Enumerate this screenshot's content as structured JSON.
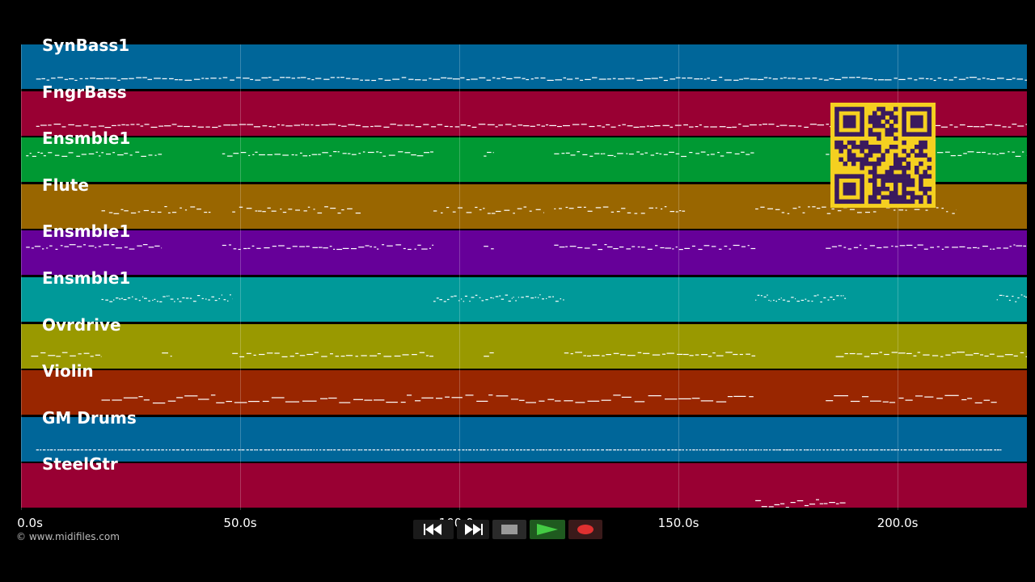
{
  "tracks": [
    {
      "label": "SynBass1",
      "color": "#006699",
      "pattern": "bass"
    },
    {
      "label": "FngrBass",
      "color": "#990033",
      "pattern": "bass"
    },
    {
      "label": "Ensmble1",
      "color": "#009933",
      "pattern": "ens"
    },
    {
      "label": "Flute",
      "color": "#996600",
      "pattern": "flute"
    },
    {
      "label": "Ensmble1",
      "color": "#660099",
      "pattern": "ens"
    },
    {
      "label": "Ensmble1",
      "color": "#009999",
      "pattern": "ens2"
    },
    {
      "label": "Ovrdrive",
      "color": "#999900",
      "pattern": "ovr"
    },
    {
      "label": "Violin",
      "color": "#992600",
      "pattern": "violin"
    },
    {
      "label": "GM Drums",
      "color": "#006699",
      "pattern": "drums"
    },
    {
      "label": "SteelGtr",
      "color": "#990033",
      "pattern": "steel"
    }
  ],
  "timeline": {
    "ticks": [
      "0.0s",
      "50.0s",
      "100.0s",
      "150.0s",
      "200.0s"
    ],
    "tick_values": [
      0,
      50,
      100,
      150,
      200
    ],
    "max_seconds": 229.5
  },
  "transport": {
    "rewind_icon": "rewind-icon",
    "fast_forward_icon": "fast-forward-icon",
    "stop_icon": "stop-icon",
    "play_icon": "play-icon",
    "record_icon": "record-icon"
  },
  "copyright": "© www.midifiles.com",
  "qr_code": {
    "colors": {
      "background": "#f5d020",
      "foreground": "#3a1a5e"
    }
  }
}
